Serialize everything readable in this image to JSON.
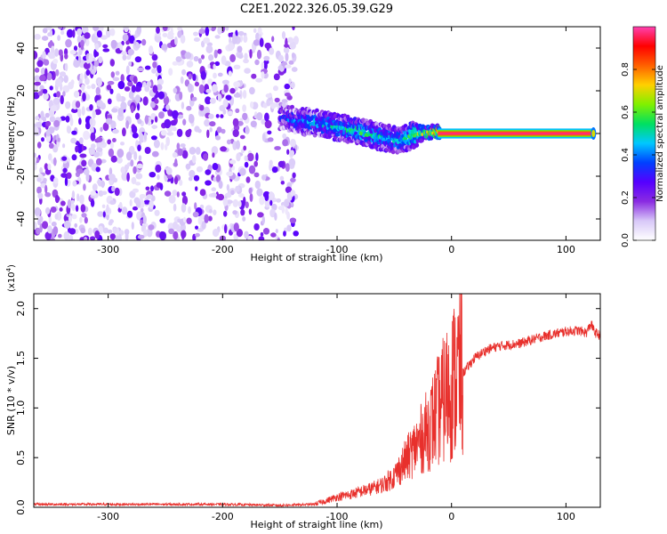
{
  "title": "C2E1.2022.326.05.39.G29",
  "chart_data": [
    {
      "type": "heatmap",
      "xlabel": "Height of straight line (km)",
      "ylabel": "Frequency (Hz)",
      "xlim": [
        -365,
        130
      ],
      "ylim": [
        -50,
        50
      ],
      "xticks": [
        -300,
        -200,
        -100,
        0,
        100
      ],
      "yticks": [
        -40,
        -20,
        0,
        20,
        40
      ],
      "colorbar": {
        "label": "Normalized spectral amplitude",
        "range": [
          0.0,
          1.0
        ],
        "ticks": [
          "0.0",
          "0.2",
          "0.4",
          "0.6",
          "0.8"
        ],
        "colors": [
          "#ffffff",
          "#d8c8f8",
          "#8a2be2",
          "#5500ff",
          "#0040ff",
          "#00c8ff",
          "#00e060",
          "#80f000",
          "#ffd000",
          "#ff6000",
          "#ff0000",
          "#ff40b0"
        ]
      },
      "noise_region": {
        "x_from": -365,
        "x_to": -135,
        "freq_from": -50,
        "freq_to": 50,
        "typical_amplitude": 0.2
      },
      "signal_trace": [
        {
          "x": -150,
          "freq": 8,
          "amp": 0.3
        },
        {
          "x": -135,
          "freq": 6,
          "amp": 0.35
        },
        {
          "x": -120,
          "freq": 5,
          "amp": 0.4
        },
        {
          "x": -100,
          "freq": 3,
          "amp": 0.45
        },
        {
          "x": -80,
          "freq": 1,
          "amp": 0.5
        },
        {
          "x": -60,
          "freq": -2,
          "amp": 0.45
        },
        {
          "x": -45,
          "freq": -3,
          "amp": 0.45
        },
        {
          "x": -30,
          "freq": 0,
          "amp": 0.6
        },
        {
          "x": -15,
          "freq": 1,
          "amp": 0.75
        },
        {
          "x": 0,
          "freq": 0,
          "amp": 0.9
        },
        {
          "x": 50,
          "freq": 0,
          "amp": 0.95
        },
        {
          "x": 100,
          "freq": 0,
          "amp": 0.95
        },
        {
          "x": 125,
          "freq": 0,
          "amp": 0.95
        }
      ]
    },
    {
      "type": "line",
      "xlabel": "Height of straight line (km)",
      "ylabel": "SNR (10 * v/v)",
      "yscale_label": "(x10",
      "yscale_exponent": "4",
      "yscale_suffix": ")",
      "xlim": [
        -365,
        130
      ],
      "ylim": [
        0,
        2.15
      ],
      "xticks": [
        -300,
        -200,
        -100,
        0,
        100
      ],
      "yticks": [
        "0.0",
        "0.5",
        "1.0",
        "1.5",
        "2.0"
      ],
      "series": [
        {
          "color": "#e8302c",
          "x": [
            -365,
            -300,
            -250,
            -200,
            -150,
            -120,
            -110,
            -100,
            -90,
            -80,
            -70,
            -60,
            -50,
            -40,
            -30,
            -20,
            -15,
            -10,
            -5,
            0,
            10,
            20,
            30,
            40,
            60,
            80,
            100,
            110,
            118,
            122,
            125,
            130
          ],
          "y": [
            0.03,
            0.03,
            0.03,
            0.03,
            0.02,
            0.03,
            0.06,
            0.1,
            0.12,
            0.15,
            0.18,
            0.22,
            0.3,
            0.45,
            0.6,
            0.75,
            0.85,
            0.95,
            1.05,
            1.15,
            1.35,
            1.5,
            1.58,
            1.62,
            1.65,
            1.72,
            1.77,
            1.78,
            1.76,
            1.85,
            1.76,
            1.73
          ]
        }
      ]
    }
  ]
}
